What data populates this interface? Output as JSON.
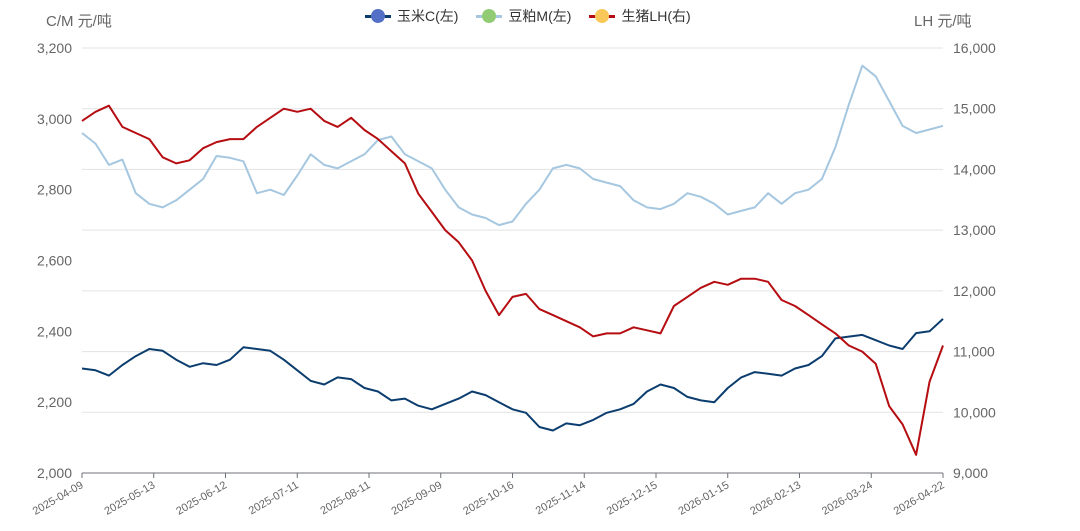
{
  "chart_data": {
    "type": "line",
    "title": "",
    "left_axis": {
      "unit": "C/M 元/吨",
      "ylim": [
        2000,
        3200
      ],
      "ticks": [
        "2,000",
        "2,200",
        "2,400",
        "2,600",
        "2,800",
        "3,000",
        "3,200"
      ]
    },
    "right_axis": {
      "unit": "LH 元/吨",
      "ylim": [
        9000,
        16000
      ],
      "ticks": [
        "9,000",
        "10,000",
        "11,000",
        "12,000",
        "13,000",
        "14,000",
        "15,000",
        "16,000"
      ]
    },
    "x_ticks": [
      "2025-04-09",
      "2025-05-13",
      "2025-06-12",
      "2025-07-11",
      "2025-08-11",
      "2025-09-09",
      "2025-10-16",
      "2025-11-14",
      "2025-12-15",
      "2026-01-15",
      "2026-02-13",
      "2026-03-24",
      "2026-04-22"
    ],
    "grid": true,
    "legend_position": "top-center",
    "series": [
      {
        "name": "玉米C(左)",
        "axis": "left",
        "line_color": "#0b3d6e",
        "legend_dot_color": "#5470c6",
        "values": [
          2295,
          2290,
          2275,
          2305,
          2330,
          2350,
          2345,
          2320,
          2300,
          2310,
          2305,
          2320,
          2355,
          2350,
          2345,
          2320,
          2290,
          2260,
          2250,
          2270,
          2265,
          2240,
          2230,
          2205,
          2210,
          2190,
          2180,
          2195,
          2210,
          2230,
          2220,
          2200,
          2180,
          2170,
          2130,
          2120,
          2140,
          2135,
          2150,
          2170,
          2180,
          2195,
          2230,
          2250,
          2240,
          2215,
          2205,
          2200,
          2240,
          2270,
          2285,
          2280,
          2275,
          2295,
          2305,
          2330,
          2380,
          2385,
          2390,
          2375,
          2360,
          2350,
          2395,
          2400,
          2435
        ]
      },
      {
        "name": "豆粕M(左)",
        "axis": "left",
        "line_color": "#a6c7e0",
        "legend_dot_color": "#91cc75",
        "values": [
          2960,
          2930,
          2870,
          2885,
          2790,
          2760,
          2750,
          2770,
          2800,
          2830,
          2895,
          2890,
          2880,
          2790,
          2800,
          2785,
          2840,
          2900,
          2870,
          2860,
          2880,
          2900,
          2940,
          2950,
          2900,
          2880,
          2860,
          2800,
          2750,
          2730,
          2720,
          2700,
          2710,
          2760,
          2800,
          2860,
          2870,
          2860,
          2830,
          2820,
          2810,
          2770,
          2750,
          2745,
          2760,
          2790,
          2780,
          2760,
          2730,
          2740,
          2750,
          2790,
          2760,
          2790,
          2800,
          2830,
          2920,
          3040,
          3150,
          3120,
          3050,
          2980,
          2960,
          2970,
          2980
        ]
      },
      {
        "name": "生猪LH(右)",
        "axis": "right",
        "line_color": "#b50d11",
        "legend_dot_color": "#fac858",
        "values": [
          14800,
          14950,
          15050,
          14700,
          14600,
          14500,
          14200,
          14100,
          14150,
          14350,
          14450,
          14500,
          14500,
          14700,
          14850,
          15000,
          14950,
          15000,
          14800,
          14700,
          14850,
          14650,
          14500,
          14300,
          14100,
          13600,
          13300,
          13000,
          12800,
          12500,
          12000,
          11600,
          11900,
          11950,
          11700,
          11600,
          11500,
          11400,
          11250,
          11300,
          11300,
          11400,
          11350,
          11300,
          11750,
          11900,
          12050,
          12150,
          12100,
          12200,
          12200,
          12150,
          11850,
          11750,
          11600,
          11450,
          11300,
          11100,
          11000,
          10800,
          10100,
          9800,
          9300,
          10500,
          11100
        ]
      }
    ]
  }
}
